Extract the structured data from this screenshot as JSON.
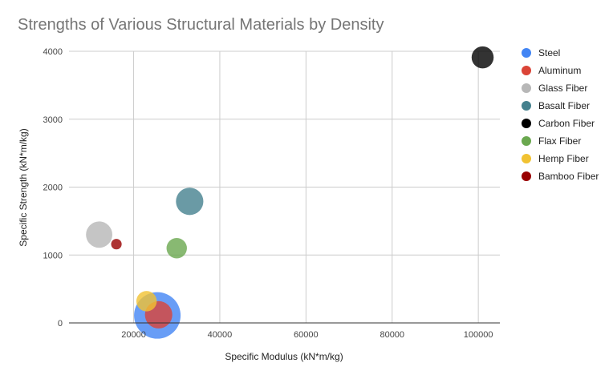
{
  "chart_data": {
    "type": "scatter",
    "title": "Strengths of Various Structural Materials by Density",
    "xlabel": "Specific Modulus (kN*m/kg)",
    "ylabel": "Specific Strength (kN*m/kg)",
    "xlim": [
      5000,
      105000
    ],
    "ylim": [
      0,
      4000
    ],
    "xticks": [
      20000,
      40000,
      60000,
      80000,
      100000
    ],
    "yticks": [
      0,
      1000,
      2000,
      3000,
      4000
    ],
    "grid": true,
    "legend_position": "right",
    "series": [
      {
        "name": "Steel",
        "color": "#4285f4",
        "x": 25500,
        "y": 110,
        "size": 7800
      },
      {
        "name": "Aluminum",
        "color": "#db4437",
        "x": 25800,
        "y": 120,
        "size": 2700
      },
      {
        "name": "Glass Fiber",
        "color": "#b7b7b7",
        "x": 12000,
        "y": 1300,
        "size": 2500
      },
      {
        "name": "Basalt Fiber",
        "color": "#45818e",
        "x": 33000,
        "y": 1790,
        "size": 2700
      },
      {
        "name": "Carbon Fiber",
        "color": "#000000",
        "x": 101000,
        "y": 3910,
        "size": 1750
      },
      {
        "name": "Flax Fiber",
        "color": "#6aa84f",
        "x": 30000,
        "y": 1100,
        "size": 1500
      },
      {
        "name": "Hemp Fiber",
        "color": "#f1c232",
        "x": 23000,
        "y": 320,
        "size": 1500
      },
      {
        "name": "Bamboo Fiber",
        "color": "#990000",
        "x": 16000,
        "y": 1160,
        "size": 400
      }
    ]
  }
}
